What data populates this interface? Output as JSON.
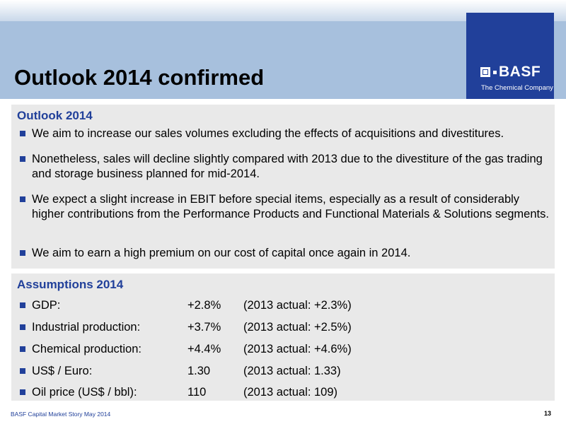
{
  "title": "Outlook 2014 confirmed",
  "logo": {
    "wordmark": "BASF",
    "tagline": "The Chemical Company",
    "brand_color": "#21409a"
  },
  "outlook": {
    "heading": "Outlook 2014",
    "bullets": [
      "We aim to increase our sales volumes excluding the effects of acquisitions and divestitures.",
      "Nonetheless, sales will decline slightly compared with 2013 due to the divestiture of the gas trading and storage business planned for mid-2014.",
      "We expect a slight increase in EBIT before special items, especially as a result of considerably higher contributions from the Performance Products and Functional Materials & Solutions segments.",
      "We aim to earn a high premium on our cost of capital once again in 2014."
    ]
  },
  "assumptions": {
    "heading": "Assumptions 2014",
    "rows": [
      {
        "label": "GDP:",
        "value": "+2.8%",
        "actual": "(2013 actual: +2.3%)"
      },
      {
        "label": "Industrial production:",
        "value": "+3.7%",
        "actual": "(2013 actual: +2.5%)"
      },
      {
        "label": "Chemical production:",
        "value": "+4.4%",
        "actual": "(2013 actual: +4.6%)"
      },
      {
        "label": "US$ / Euro:",
        "value": "1.30",
        "actual": "(2013 actual: 1.33)"
      },
      {
        "label": "Oil price (US$ / bbl):",
        "value": "110",
        "actual": "(2013 actual: 109)"
      }
    ]
  },
  "footer": {
    "text": "BASF Capital Market Story May 2014",
    "page_number": "13"
  },
  "colors": {
    "title_band": "#a7c0dd",
    "panel_background": "#e9e9e9",
    "accent": "#21409a"
  }
}
